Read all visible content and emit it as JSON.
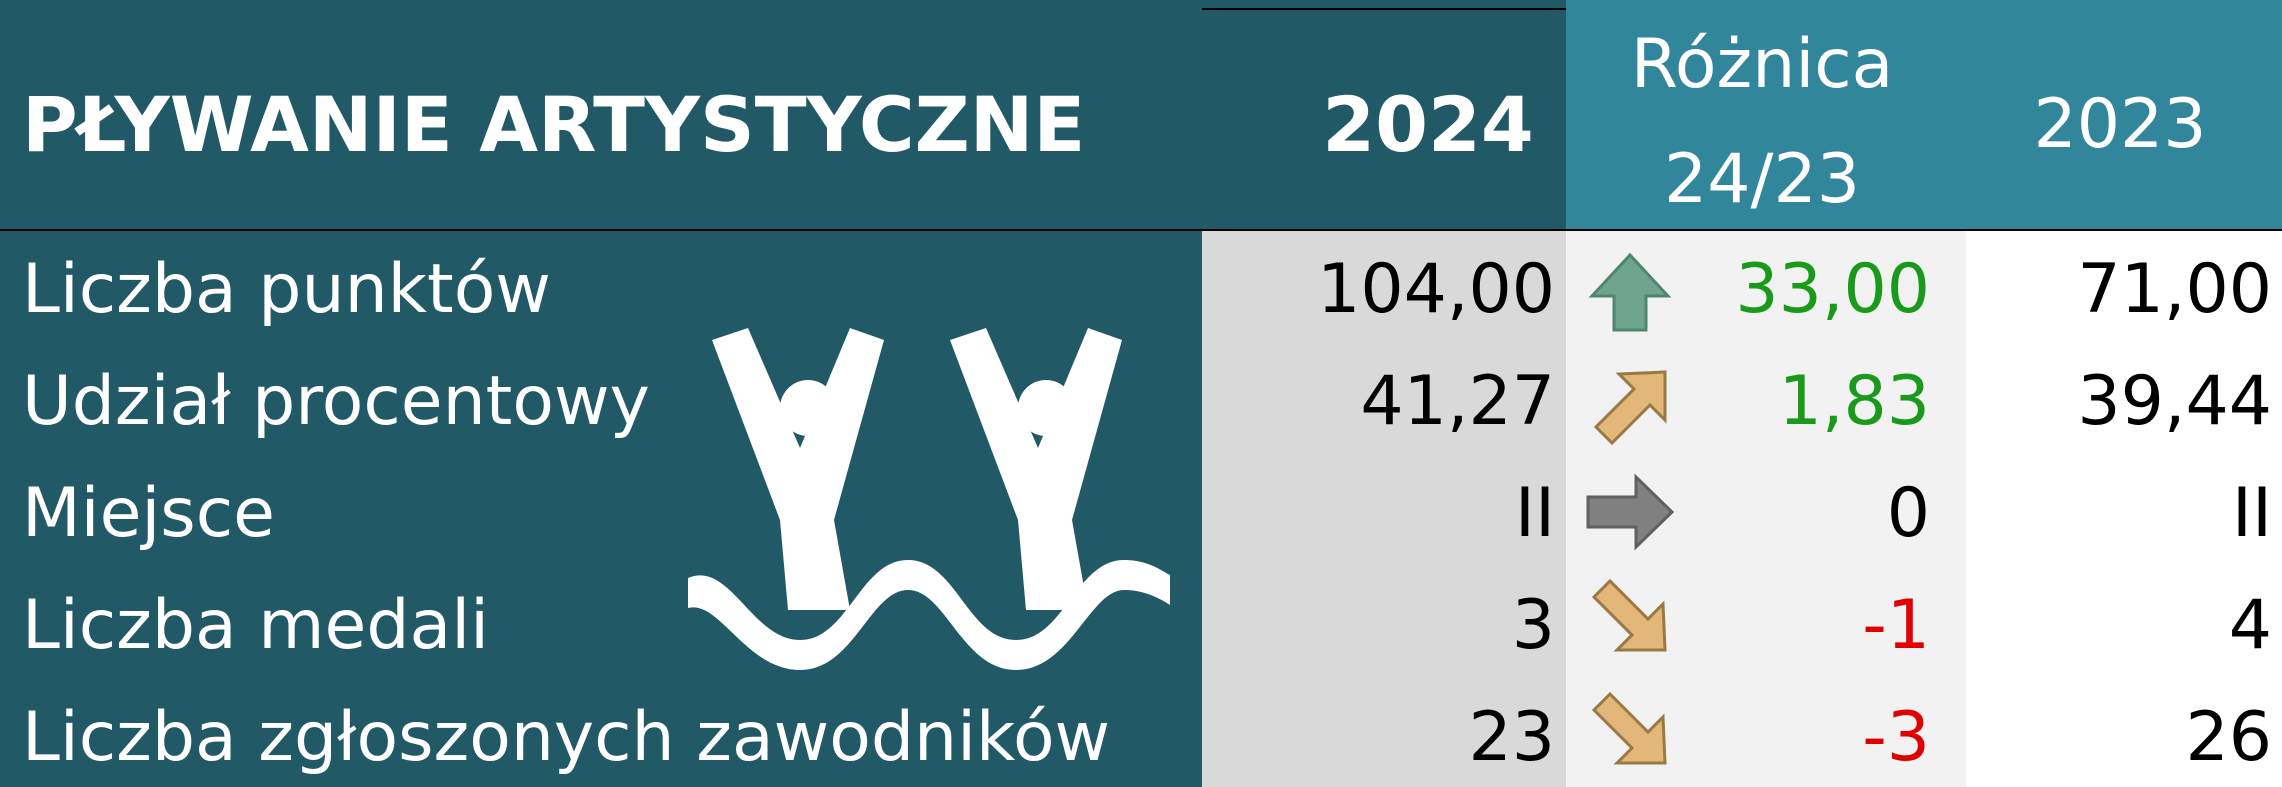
{
  "header": {
    "title": "PŁYWANIE ARTYSTYCZNE",
    "col_2024": "2024",
    "col_diff": [
      "Różnica",
      "24/23"
    ],
    "col_2023": "2023"
  },
  "table": {
    "rows": [
      [
        "Liczba punktów",
        "104,00",
        "33,00",
        "71,00"
      ],
      [
        "Udział procentowy",
        "41,27",
        "1,83",
        "39,44"
      ],
      [
        "Miejsce",
        "II",
        "0",
        "II"
      ],
      [
        "Liczba medali",
        "3",
        "-1",
        "4"
      ],
      [
        "Liczba zgłoszonych zawodników",
        "23",
        "-3",
        "26"
      ]
    ]
  }
}
